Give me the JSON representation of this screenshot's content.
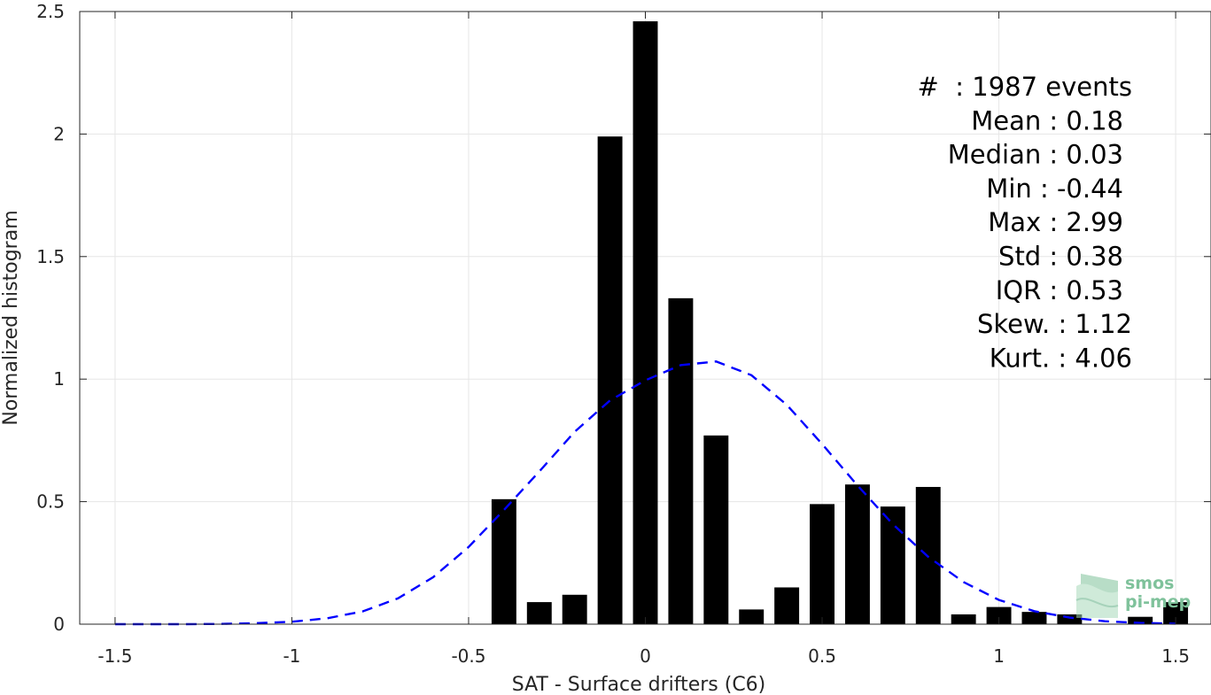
{
  "chart_data": {
    "type": "bar",
    "xlabel": "SAT - Surface drifters (C6)",
    "ylabel": "Normalized histogram",
    "xlim": [
      -1.6,
      1.6
    ],
    "ylim": [
      0,
      2.5
    ],
    "xticks": [
      -1.5,
      -1,
      -0.5,
      0,
      0.5,
      1,
      1.5
    ],
    "xtick_labels": [
      "-1.5",
      "-1",
      "-0.5",
      "0",
      "0.5",
      "1",
      "1.5"
    ],
    "yticks": [
      0,
      0.5,
      1,
      1.5,
      2,
      2.5
    ],
    "ytick_labels": [
      "0",
      "0.5",
      "1",
      "1.5",
      "2",
      "2.5"
    ],
    "grid": true,
    "bar_width": 0.07,
    "bars": {
      "x": [
        -0.4,
        -0.3,
        -0.2,
        -0.1,
        0.0,
        0.1,
        0.2,
        0.3,
        0.4,
        0.5,
        0.6,
        0.7,
        0.8,
        0.9,
        1.0,
        1.1,
        1.2,
        1.3,
        1.4,
        1.5
      ],
      "values": [
        0.51,
        0.09,
        0.12,
        1.99,
        2.46,
        1.33,
        0.77,
        0.06,
        0.15,
        0.49,
        0.57,
        0.48,
        0.56,
        0.04,
        0.07,
        0.05,
        0.04,
        0.0,
        0.03,
        0.09
      ]
    },
    "fit_curve": {
      "style": "dashed",
      "color": "#0000ff",
      "x": [
        -1.5,
        -1.4,
        -1.3,
        -1.2,
        -1.1,
        -1.0,
        -0.9,
        -0.8,
        -0.7,
        -0.6,
        -0.5,
        -0.4,
        -0.3,
        -0.2,
        -0.1,
        0.0,
        0.1,
        0.2,
        0.3,
        0.4,
        0.5,
        0.6,
        0.7,
        0.8,
        0.9,
        1.0,
        1.1,
        1.2,
        1.3,
        1.4,
        1.5
      ],
      "values": [
        0.0,
        0.0,
        0.0,
        0.001,
        0.004,
        0.01,
        0.024,
        0.052,
        0.105,
        0.192,
        0.315,
        0.466,
        0.623,
        0.785,
        0.913,
        0.995,
        1.057,
        1.072,
        1.016,
        0.895,
        0.735,
        0.566,
        0.408,
        0.275,
        0.172,
        0.099,
        0.053,
        0.027,
        0.012,
        0.005,
        0.002
      ]
    },
    "stats_box": [
      "#  : 1987 events",
      "Mean : 0.18",
      "Median : 0.03",
      "Min : -0.44",
      "Max : 2.99",
      "Std : 0.38",
      "IQR : 0.53",
      "Skew. : 1.12",
      "Kurt. : 4.06"
    ]
  },
  "logo": {
    "line1": "smos",
    "line2": "pi-mep"
  },
  "colors": {
    "bars": "#000000",
    "fit": "#0000ff",
    "grid": "#e6e6e6",
    "axis": "#262626",
    "logo": "#7fc29b"
  }
}
